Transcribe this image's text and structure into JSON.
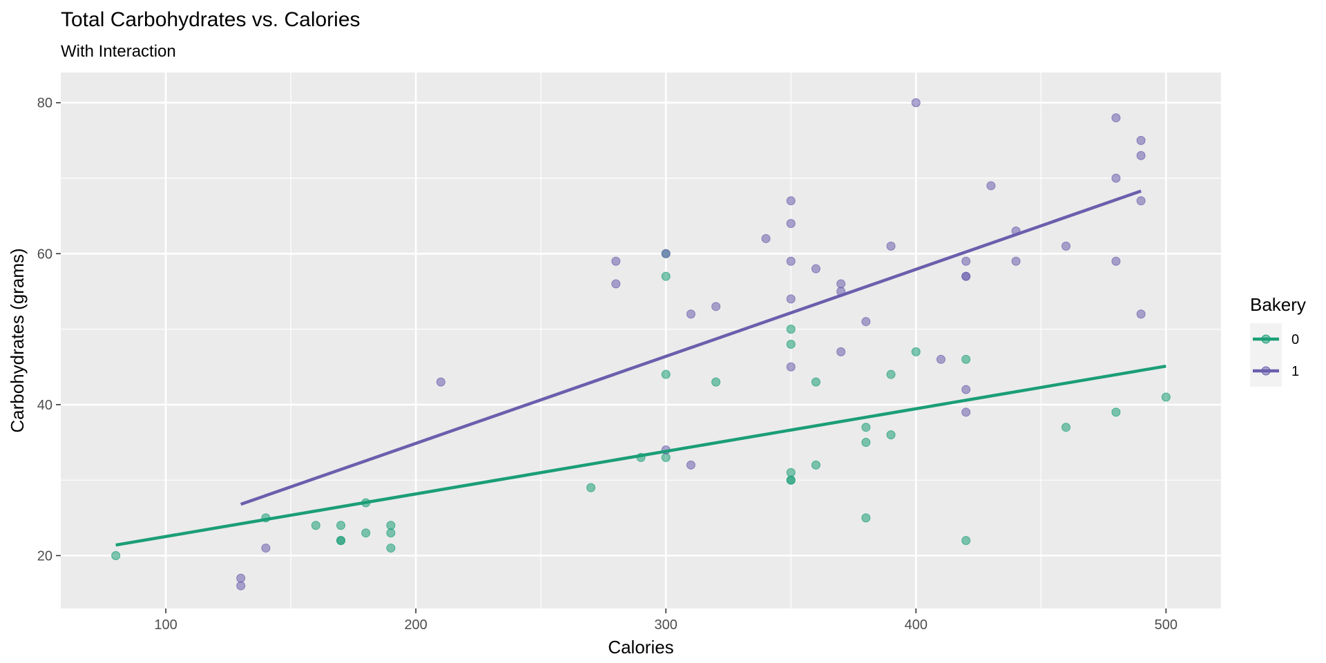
{
  "chart_data": {
    "type": "scatter",
    "title": "Total Carbohydrates vs. Calories",
    "subtitle": "With Interaction",
    "xlabel": "Calories",
    "ylabel": "Carbohydrates (grams)",
    "xlim": [
      58,
      522
    ],
    "ylim": [
      13,
      84
    ],
    "x_ticks": [
      100,
      200,
      300,
      400,
      500
    ],
    "y_ticks": [
      20,
      40,
      60,
      80
    ],
    "grid": true,
    "legend": {
      "title": "Bakery",
      "position": "right"
    },
    "series": [
      {
        "name": "0",
        "color": "#1b9e77",
        "points": [
          [
            80,
            20
          ],
          [
            140,
            25
          ],
          [
            160,
            24
          ],
          [
            170,
            24
          ],
          [
            170,
            22
          ],
          [
            170,
            22
          ],
          [
            180,
            27
          ],
          [
            180,
            23
          ],
          [
            190,
            24
          ],
          [
            190,
            23
          ],
          [
            190,
            21
          ],
          [
            270,
            29
          ],
          [
            290,
            33
          ],
          [
            300,
            60
          ],
          [
            300,
            57
          ],
          [
            300,
            44
          ],
          [
            300,
            33
          ],
          [
            320,
            43
          ],
          [
            350,
            50
          ],
          [
            350,
            48
          ],
          [
            350,
            31
          ],
          [
            350,
            30
          ],
          [
            350,
            30
          ],
          [
            360,
            43
          ],
          [
            360,
            32
          ],
          [
            380,
            37
          ],
          [
            380,
            35
          ],
          [
            380,
            25
          ],
          [
            390,
            44
          ],
          [
            390,
            36
          ],
          [
            400,
            47
          ],
          [
            420,
            46
          ],
          [
            420,
            22
          ],
          [
            460,
            37
          ],
          [
            480,
            39
          ],
          [
            500,
            41
          ]
        ],
        "fit": [
          [
            80,
            21.4
          ],
          [
            500,
            45.1
          ]
        ]
      },
      {
        "name": "1",
        "color": "#6a5fad",
        "points": [
          [
            130,
            17
          ],
          [
            130,
            16
          ],
          [
            140,
            21
          ],
          [
            210,
            43
          ],
          [
            280,
            59
          ],
          [
            280,
            56
          ],
          [
            300,
            60
          ],
          [
            300,
            34
          ],
          [
            310,
            52
          ],
          [
            310,
            32
          ],
          [
            320,
            53
          ],
          [
            340,
            62
          ],
          [
            350,
            67
          ],
          [
            350,
            64
          ],
          [
            350,
            59
          ],
          [
            350,
            54
          ],
          [
            350,
            45
          ],
          [
            360,
            58
          ],
          [
            370,
            56
          ],
          [
            370,
            55
          ],
          [
            370,
            47
          ],
          [
            380,
            51
          ],
          [
            390,
            61
          ],
          [
            400,
            80
          ],
          [
            410,
            46
          ],
          [
            420,
            59
          ],
          [
            420,
            57
          ],
          [
            420,
            57
          ],
          [
            420,
            42
          ],
          [
            420,
            39
          ],
          [
            430,
            69
          ],
          [
            440,
            63
          ],
          [
            440,
            59
          ],
          [
            460,
            61
          ],
          [
            480,
            78
          ],
          [
            480,
            70
          ],
          [
            480,
            59
          ],
          [
            490,
            75
          ],
          [
            490,
            73
          ],
          [
            490,
            67
          ],
          [
            490,
            52
          ]
        ],
        "fit": [
          [
            130,
            26.8
          ],
          [
            490,
            68.3
          ]
        ]
      }
    ]
  }
}
